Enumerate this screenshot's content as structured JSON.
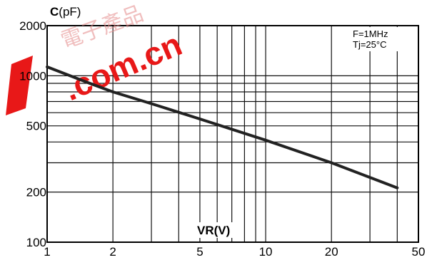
{
  "chart_data": {
    "type": "line",
    "xlabel": "VR(V)",
    "ylabel_main": "C",
    "ylabel_unit": "(pF)",
    "x_scale": "log",
    "y_scale": "log",
    "xlim": [
      1,
      50
    ],
    "ylim": [
      100,
      2000
    ],
    "x_ticks": [
      1,
      2,
      5,
      10,
      20,
      50
    ],
    "x_tick_labels": [
      "1",
      "2",
      "5",
      "10",
      "20",
      "50"
    ],
    "y_ticks": [
      100,
      200,
      500,
      1000,
      2000
    ],
    "y_tick_labels": [
      "100",
      "200",
      "500",
      "1000",
      "2000"
    ],
    "x_minor_grid": [
      3,
      4,
      6,
      7,
      8,
      9,
      30,
      40
    ],
    "y_minor_grid": [
      300,
      400,
      600,
      700,
      800,
      900
    ],
    "grid": true,
    "annotations": [
      "F=1MHz",
      "Tj=25°C"
    ],
    "series": [
      {
        "x": [
          1,
          1.5,
          2,
          3,
          5,
          10,
          20,
          40
        ],
        "y": [
          1130,
          920,
          800,
          680,
          550,
          410,
          300,
          212
        ]
      }
    ],
    "line_color": "#222222"
  },
  "watermark": {
    "chinese_text": "電子產品",
    "domain_text": ".com.cn",
    "color": "#e81818"
  }
}
